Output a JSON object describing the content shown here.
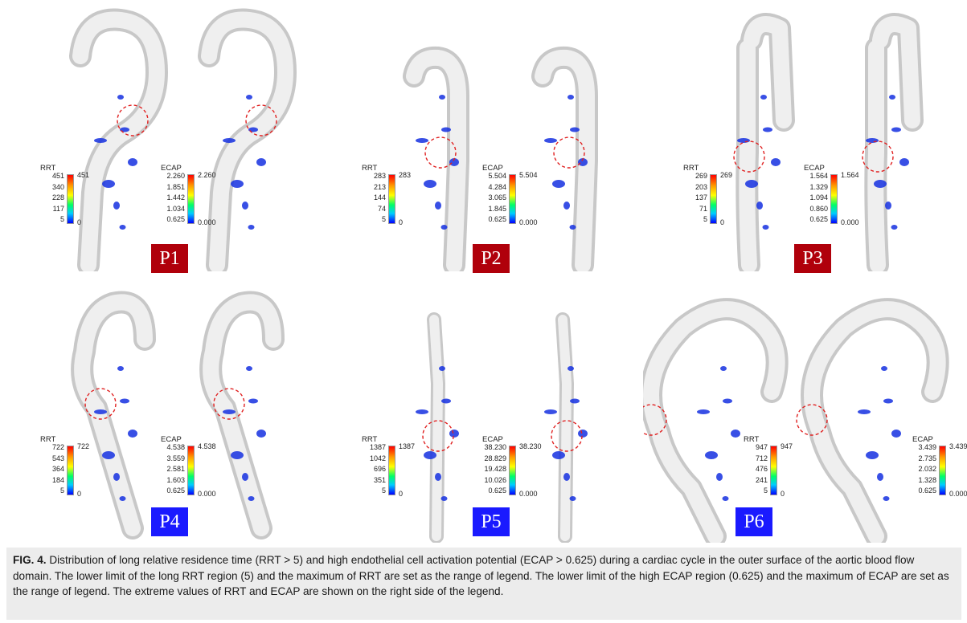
{
  "figure": {
    "panels": [
      {
        "id": "P1",
        "badge": "P1",
        "badge_color": "#b0000b",
        "rrt": {
          "title": "RRT",
          "ticks": [
            "451",
            "340",
            "228",
            "117",
            "5"
          ],
          "max": "451",
          "min": "0"
        },
        "ecap": {
          "title": "ECAP",
          "ticks": [
            "2.260",
            "1.851",
            "1.442",
            "1.034",
            "0.625"
          ],
          "max": "2.260",
          "min": "0.000"
        }
      },
      {
        "id": "P2",
        "badge": "P2",
        "badge_color": "#b0000b",
        "rrt": {
          "title": "RRT",
          "ticks": [
            "283",
            "213",
            "144",
            "74",
            "5"
          ],
          "max": "283",
          "min": "0"
        },
        "ecap": {
          "title": "ECAP",
          "ticks": [
            "5.504",
            "4.284",
            "3.065",
            "1.845",
            "0.625"
          ],
          "max": "5.504",
          "min": "0.000"
        }
      },
      {
        "id": "P3",
        "badge": "P3",
        "badge_color": "#b0000b",
        "rrt": {
          "title": "RRT",
          "ticks": [
            "269",
            "203",
            "137",
            "71",
            "5"
          ],
          "max": "269",
          "min": "0"
        },
        "ecap": {
          "title": "ECAP",
          "ticks": [
            "1.564",
            "1.329",
            "1.094",
            "0.860",
            "0.625"
          ],
          "max": "1.564",
          "min": "0.000"
        }
      },
      {
        "id": "P4",
        "badge": "P4",
        "badge_color": "#1a1aff",
        "rrt": {
          "title": "RRT",
          "ticks": [
            "722",
            "543",
            "364",
            "184",
            "5"
          ],
          "max": "722",
          "min": "0"
        },
        "ecap": {
          "title": "ECAP",
          "ticks": [
            "4.538",
            "3.559",
            "2.581",
            "1.603",
            "0.625"
          ],
          "max": "4.538",
          "min": "0.000"
        }
      },
      {
        "id": "P5",
        "badge": "P5",
        "badge_color": "#1a1aff",
        "rrt": {
          "title": "RRT",
          "ticks": [
            "1387",
            "1042",
            "696",
            "351",
            "5"
          ],
          "max": "1387",
          "min": "0"
        },
        "ecap": {
          "title": "ECAP",
          "ticks": [
            "38.230",
            "28.829",
            "19.428",
            "10.026",
            "0.625"
          ],
          "max": "38.230",
          "min": "0.000"
        }
      },
      {
        "id": "P6",
        "badge": "P6",
        "badge_color": "#1a1aff",
        "rrt": {
          "title": "RRT",
          "ticks": [
            "947",
            "712",
            "476",
            "241",
            "5"
          ],
          "max": "947",
          "min": "0"
        },
        "ecap": {
          "title": "ECAP",
          "ticks": [
            "3.439",
            "2.735",
            "2.032",
            "1.328",
            "0.625"
          ],
          "max": "3.439",
          "min": "0.000"
        }
      }
    ]
  },
  "caption": {
    "label": "FIG. 4.",
    "text": "Distribution of long relative residence time (RRT > 5) and high endothelial cell activation potential (ECAP > 0.625) during a cardiac cycle in the outer surface of the aortic blood flow domain. The lower limit of the long RRT region (5) and the maximum of RRT are set as the range of legend. The lower limit of the high ECAP region (0.625) and the maximum of ECAP are set as the range of legend. The extreme values of RRT and ECAP are shown on the right side of the legend."
  }
}
